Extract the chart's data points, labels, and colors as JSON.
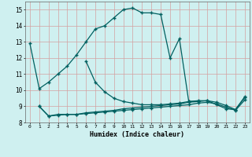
{
  "xlabel": "Humidex (Indice chaleur)",
  "bg_color": "#cff0f0",
  "grid_color": "#d4a0a0",
  "line_color": "#006060",
  "series1_x": [
    0,
    1,
    2,
    3,
    4,
    5,
    6,
    7,
    8,
    9,
    10,
    11,
    12,
    13,
    14,
    15,
    16,
    17,
    18
  ],
  "series1_y": [
    12.9,
    10.1,
    10.5,
    11.0,
    11.5,
    12.2,
    13.0,
    13.8,
    14.0,
    14.5,
    15.0,
    15.1,
    14.8,
    14.8,
    14.7,
    12.0,
    13.2,
    9.3,
    9.3
  ],
  "series2_x": [
    6,
    7,
    8,
    9,
    10,
    11,
    12,
    13,
    14,
    15,
    16,
    17,
    18,
    19,
    20,
    21,
    22,
    23
  ],
  "series2_y": [
    11.8,
    10.5,
    9.9,
    9.5,
    9.3,
    9.2,
    9.1,
    9.1,
    9.1,
    9.15,
    9.2,
    9.3,
    9.35,
    9.35,
    9.1,
    8.85,
    8.8,
    9.6
  ],
  "series3_x": [
    1,
    2,
    3,
    4,
    5,
    6,
    7,
    8,
    9,
    10,
    11,
    12,
    13,
    14,
    15,
    16,
    17,
    18,
    19,
    20,
    21,
    22,
    23
  ],
  "series3_y": [
    9.0,
    8.4,
    8.5,
    8.5,
    8.5,
    8.6,
    8.65,
    8.7,
    8.75,
    8.85,
    8.9,
    8.95,
    9.0,
    9.05,
    9.1,
    9.15,
    9.25,
    9.3,
    9.35,
    9.25,
    9.05,
    8.8,
    9.55
  ],
  "series4_x": [
    1,
    2,
    3,
    4,
    5,
    6,
    7,
    8,
    9,
    10,
    11,
    12,
    13,
    14,
    15,
    16,
    17,
    18,
    19,
    20,
    21,
    22,
    23
  ],
  "series4_y": [
    9.0,
    8.4,
    8.45,
    8.5,
    8.5,
    8.55,
    8.6,
    8.65,
    8.7,
    8.75,
    8.8,
    8.85,
    8.9,
    8.95,
    9.0,
    9.05,
    9.1,
    9.2,
    9.25,
    9.15,
    8.95,
    8.75,
    9.4
  ],
  "ylim": [
    8,
    15.5
  ],
  "xlim": [
    -0.5,
    23.5
  ],
  "yticks": [
    8,
    9,
    10,
    11,
    12,
    13,
    14,
    15
  ],
  "xticks": [
    0,
    1,
    2,
    3,
    4,
    5,
    6,
    7,
    8,
    9,
    10,
    11,
    12,
    13,
    14,
    15,
    16,
    17,
    18,
    19,
    20,
    21,
    22,
    23
  ],
  "xtick_labels": [
    "0",
    "1",
    "2",
    "3",
    "4",
    "5",
    "6",
    "7",
    "8",
    "9",
    "10",
    "11",
    "12",
    "13",
    "14",
    "15",
    "16",
    "17",
    "18",
    "19",
    "20",
    "21",
    "22",
    "23"
  ],
  "markersize": 2.0,
  "linewidth": 0.9
}
